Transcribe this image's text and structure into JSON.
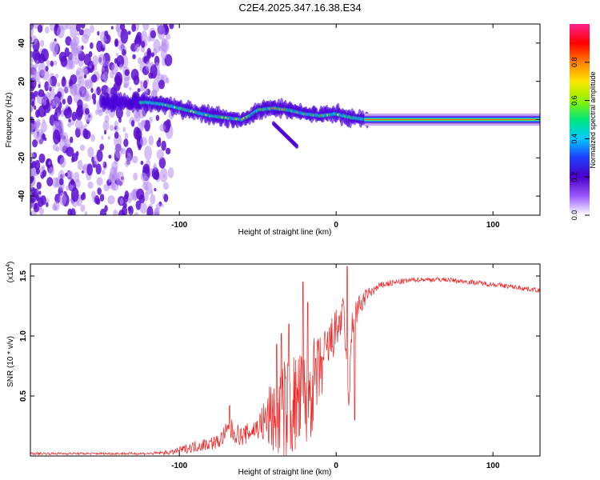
{
  "figure": {
    "title": "C2E4.2025.347.16.38.E34",
    "colors": {
      "snr_line": "#ee2222",
      "trace_center": "#ff1a1a",
      "noise": "#7b22e0",
      "axis": "#000000"
    }
  },
  "chart_data": [
    {
      "type": "heatmap",
      "title": "",
      "xlabel": "Height of straight line (km)",
      "ylabel": "Frequency (Hz)",
      "xlim": [
        -195,
        130
      ],
      "ylim": [
        -50,
        50
      ],
      "xticks": [
        -100,
        0,
        100
      ],
      "yticks": [
        -40,
        -20,
        0,
        20,
        40
      ],
      "colorbar": {
        "label": "Normalized spectral amplitude",
        "range": [
          0.0,
          1.0
        ],
        "ticks": [
          0.0,
          0.2,
          0.4,
          0.6,
          0.8
        ],
        "tick_labels": [
          "0.0",
          "0.2",
          "0.4",
          "0.6",
          "0.8"
        ],
        "colormap": [
          "#ffffff",
          "#9b59ff",
          "#4b00c8",
          "#1f3cff",
          "#00c8ff",
          "#00e87a",
          "#8ff200",
          "#ffe600",
          "#ff8000",
          "#ff0000",
          "#ff1f8f"
        ]
      },
      "trace": {
        "x": [
          -120,
          -110,
          -100,
          -90,
          -80,
          -70,
          -60,
          -55,
          -50,
          -40,
          -30,
          -20,
          -10,
          0,
          10,
          20,
          60,
          130
        ],
        "y": [
          9,
          8,
          6,
          4,
          2,
          1,
          0,
          2,
          5,
          6,
          5,
          3,
          2,
          3,
          1,
          0,
          0,
          0
        ]
      },
      "branch": {
        "x": [
          -40,
          -35,
          -30,
          -25
        ],
        "y": [
          -2,
          -6,
          -10,
          -14
        ]
      }
    },
    {
      "type": "line",
      "title": "",
      "xlabel": "Height of straight line (km)",
      "ylabel": "SNR (10 * v/v)",
      "y_multiplier_label": "(x10",
      "y_multiplier_exp": "4",
      "y_multiplier_close": ")",
      "xlim": [
        -195,
        130
      ],
      "ylim": [
        0,
        1.6
      ],
      "xticks": [
        -100,
        0,
        100
      ],
      "xtick_labels": [
        "-100",
        "0",
        "100"
      ],
      "yticks": [
        0.5,
        1.0,
        1.5
      ],
      "ytick_labels": [
        "0.5",
        "1.0",
        "1.5"
      ],
      "envelope": {
        "x": [
          -195,
          -120,
          -105,
          -90,
          -75,
          -68,
          -60,
          -50,
          -40,
          -30,
          -20,
          -15,
          -10,
          -5,
          0,
          5,
          8,
          10,
          12,
          20,
          30,
          50,
          70,
          100,
          130
        ],
        "base": [
          0.02,
          0.02,
          0.03,
          0.08,
          0.12,
          0.22,
          0.16,
          0.24,
          0.34,
          0.4,
          0.46,
          0.58,
          0.72,
          0.9,
          1.05,
          1.18,
          0.38,
          1.05,
          1.18,
          1.35,
          1.43,
          1.47,
          1.47,
          1.43,
          1.38
        ],
        "jitter": [
          0.01,
          0.01,
          0.02,
          0.05,
          0.06,
          0.1,
          0.08,
          0.1,
          0.35,
          0.45,
          0.45,
          0.4,
          0.3,
          0.22,
          0.18,
          0.16,
          0.05,
          0.18,
          0.14,
          0.05,
          0.03,
          0.02,
          0.02,
          0.02,
          0.02
        ]
      },
      "spikes": {
        "x": [
          -68,
          -38,
          -35,
          -30,
          -21,
          -18,
          7,
          12
        ],
        "y": [
          0.42,
          0.93,
          1.02,
          1.1,
          1.45,
          1.28,
          1.58,
          0.3
        ]
      }
    }
  ]
}
